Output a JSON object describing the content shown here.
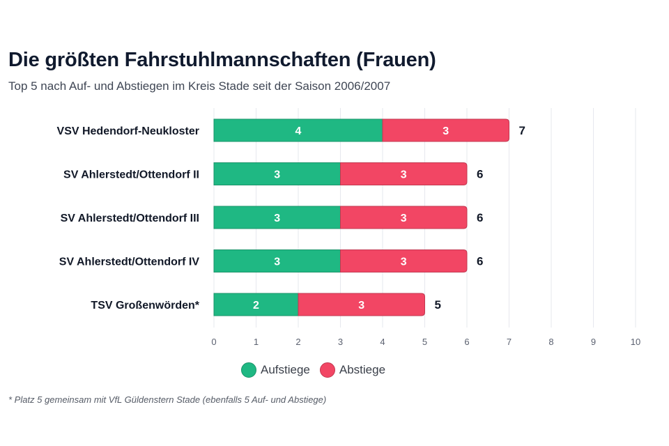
{
  "chart_data": {
    "type": "bar",
    "orientation": "horizontal",
    "stacked": true,
    "title": "Die größten Fahrstuhlmannschaften (Frauen)",
    "subtitle": "Top 5 nach Auf- und Abstiegen im Kreis Stade seit der Saison 2006/2007",
    "categories": [
      "VSV Hedendorf-Neukloster",
      "SV Ahlerstedt/Ottendorf II",
      "SV Ahlerstedt/Ottendorf III",
      "SV Ahlerstedt/Ottendorf IV",
      "TSV Großenwörden*"
    ],
    "series": [
      {
        "name": "Aufstiege",
        "color": "#1fb883",
        "values": [
          4,
          3,
          3,
          3,
          2
        ]
      },
      {
        "name": "Abstiege",
        "color": "#f24664",
        "values": [
          3,
          3,
          3,
          3,
          3
        ]
      }
    ],
    "totals": [
      7,
      6,
      6,
      6,
      5
    ],
    "xlim": [
      0,
      10
    ],
    "xticks": [
      "0",
      "1",
      "2",
      "3",
      "4",
      "5",
      "6",
      "7",
      "8",
      "9",
      "10"
    ],
    "grid": true,
    "legend_position": "bottom-center",
    "xlabel": "",
    "ylabel": "",
    "footnote": "* Platz 5 gemeinsam mit VfL Güldenstern Stade (ebenfalls 5 Auf- und Abstiege)"
  }
}
